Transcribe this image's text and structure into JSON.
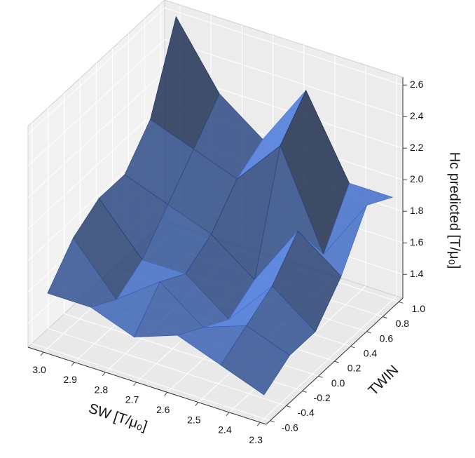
{
  "chart_data": {
    "type": "surface3d",
    "x_label": "SW [T/μ₀]",
    "y_label": "TWIN",
    "z_label": "Hc predicted [T/μ₀]",
    "x": [
      3.0,
      2.86,
      2.72,
      2.58,
      2.44,
      2.3
    ],
    "y": [
      -0.6,
      -0.28,
      0.04,
      0.36,
      0.68,
      1.0
    ],
    "z": [
      [
        1.6,
        1.6,
        1.5,
        1.6,
        1.5,
        1.4
      ],
      [
        1.8,
        1.5,
        1.7,
        1.5,
        1.6,
        1.5
      ],
      [
        1.9,
        1.6,
        1.6,
        1.4,
        1.7,
        1.5
      ],
      [
        1.9,
        1.8,
        1.7,
        1.5,
        1.9,
        1.7
      ],
      [
        2.1,
        2.0,
        1.9,
        2.2,
        1.6,
        2.0
      ],
      [
        2.6,
        2.2,
        2.0,
        2.4,
        1.9,
        1.9
      ]
    ],
    "color": "#3f6fd1",
    "xlim": [
      3.05,
      2.28
    ],
    "ylim": [
      -0.65,
      1.05
    ],
    "zlim": [
      1.25,
      2.65
    ],
    "xticks": [
      {
        "value": 3,
        "label": "3.0"
      },
      2.9,
      2.8,
      2.7,
      2.6,
      2.5,
      2.4,
      2.3
    ],
    "yticks": [
      -0.6,
      -0.4,
      -0.2,
      {
        "value": 0,
        "label": "0.0"
      },
      0.2,
      0.4,
      0.6,
      0.8,
      {
        "value": 1,
        "label": "1.0"
      }
    ],
    "zticks": [
      1.4,
      1.6,
      1.8,
      {
        "value": 2,
        "label": "2.0"
      },
      2.2,
      2.4,
      2.6
    ],
    "grid": true
  }
}
